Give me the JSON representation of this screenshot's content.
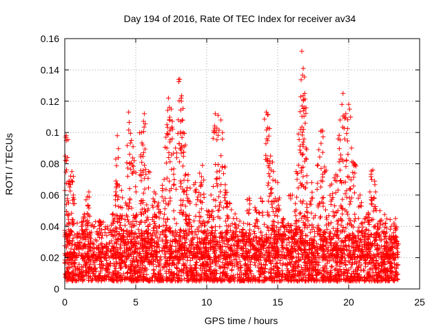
{
  "chart_data": {
    "type": "scatter",
    "title": "Day 194 of 2016, Rate Of TEC Index for receiver av34",
    "xlabel": "GPS time / hours",
    "ylabel": "ROTI / TECUs",
    "xlim": [
      0,
      25
    ],
    "ylim": [
      0,
      0.16
    ],
    "xticks": [
      0,
      5,
      10,
      15,
      20,
      25
    ],
    "xtick_labels": [
      "0",
      "5",
      "10",
      "15",
      "20",
      "25"
    ],
    "yticks": [
      0,
      0.02,
      0.04,
      0.06,
      0.08,
      0.1,
      0.12,
      0.14,
      0.16
    ],
    "ytick_labels": [
      "0",
      "0.02",
      "0.04",
      "0.06",
      "0.08",
      "0.1",
      "0.12",
      "0.14",
      "0.16"
    ],
    "grid": true,
    "marker": "+",
    "color": "#ff0000",
    "series": [
      {
        "name": "ROTI",
        "x_range": [
          0,
          23.5
        ],
        "baseline_range": [
          0.005,
          0.03
        ],
        "note": "dense scatter; points below are approximate envelope peaks",
        "peaks": [
          {
            "x": 0.1,
            "y": 0.098
          },
          {
            "x": 0.2,
            "y": 0.084
          },
          {
            "x": 0.3,
            "y": 0.069
          },
          {
            "x": 0.5,
            "y": 0.075
          },
          {
            "x": 0.6,
            "y": 0.06
          },
          {
            "x": 1.3,
            "y": 0.045
          },
          {
            "x": 1.5,
            "y": 0.057
          },
          {
            "x": 1.7,
            "y": 0.062
          },
          {
            "x": 2.5,
            "y": 0.041
          },
          {
            "x": 3.4,
            "y": 0.048
          },
          {
            "x": 3.6,
            "y": 0.069
          },
          {
            "x": 3.7,
            "y": 0.098
          },
          {
            "x": 4.0,
            "y": 0.063
          },
          {
            "x": 4.3,
            "y": 0.055
          },
          {
            "x": 4.5,
            "y": 0.113
          },
          {
            "x": 4.7,
            "y": 0.095
          },
          {
            "x": 4.9,
            "y": 0.082
          },
          {
            "x": 5.4,
            "y": 0.1
          },
          {
            "x": 5.5,
            "y": 0.092
          },
          {
            "x": 5.6,
            "y": 0.112
          },
          {
            "x": 5.9,
            "y": 0.075
          },
          {
            "x": 6.3,
            "y": 0.062
          },
          {
            "x": 6.6,
            "y": 0.055
          },
          {
            "x": 7.0,
            "y": 0.07
          },
          {
            "x": 7.2,
            "y": 0.105
          },
          {
            "x": 7.3,
            "y": 0.122
          },
          {
            "x": 7.5,
            "y": 0.115
          },
          {
            "x": 7.8,
            "y": 0.09
          },
          {
            "x": 8.1,
            "y": 0.134
          },
          {
            "x": 8.2,
            "y": 0.122
          },
          {
            "x": 8.3,
            "y": 0.108
          },
          {
            "x": 8.5,
            "y": 0.092
          },
          {
            "x": 8.7,
            "y": 0.073
          },
          {
            "x": 9.2,
            "y": 0.068
          },
          {
            "x": 9.5,
            "y": 0.074
          },
          {
            "x": 9.7,
            "y": 0.079
          },
          {
            "x": 10.0,
            "y": 0.05
          },
          {
            "x": 10.3,
            "y": 0.06
          },
          {
            "x": 10.6,
            "y": 0.112
          },
          {
            "x": 10.8,
            "y": 0.111
          },
          {
            "x": 11.0,
            "y": 0.108
          },
          {
            "x": 11.3,
            "y": 0.078
          },
          {
            "x": 11.6,
            "y": 0.055
          },
          {
            "x": 12.0,
            "y": 0.048
          },
          {
            "x": 12.6,
            "y": 0.042
          },
          {
            "x": 13.0,
            "y": 0.058
          },
          {
            "x": 13.4,
            "y": 0.052
          },
          {
            "x": 13.8,
            "y": 0.058
          },
          {
            "x": 14.2,
            "y": 0.113
          },
          {
            "x": 14.3,
            "y": 0.103
          },
          {
            "x": 14.5,
            "y": 0.085
          },
          {
            "x": 14.7,
            "y": 0.075
          },
          {
            "x": 15.0,
            "y": 0.068
          },
          {
            "x": 15.4,
            "y": 0.045
          },
          {
            "x": 15.9,
            "y": 0.06
          },
          {
            "x": 16.3,
            "y": 0.075
          },
          {
            "x": 16.6,
            "y": 0.102
          },
          {
            "x": 16.7,
            "y": 0.152
          },
          {
            "x": 16.8,
            "y": 0.141
          },
          {
            "x": 16.9,
            "y": 0.125
          },
          {
            "x": 17.0,
            "y": 0.09
          },
          {
            "x": 17.4,
            "y": 0.068
          },
          {
            "x": 17.9,
            "y": 0.089
          },
          {
            "x": 18.1,
            "y": 0.101
          },
          {
            "x": 18.3,
            "y": 0.078
          },
          {
            "x": 18.8,
            "y": 0.067
          },
          {
            "x": 19.1,
            "y": 0.073
          },
          {
            "x": 19.4,
            "y": 0.108
          },
          {
            "x": 19.6,
            "y": 0.125
          },
          {
            "x": 19.8,
            "y": 0.112
          },
          {
            "x": 20.0,
            "y": 0.118
          },
          {
            "x": 20.2,
            "y": 0.09
          },
          {
            "x": 20.4,
            "y": 0.08
          },
          {
            "x": 20.8,
            "y": 0.06
          },
          {
            "x": 21.2,
            "y": 0.045
          },
          {
            "x": 21.5,
            "y": 0.062
          },
          {
            "x": 21.7,
            "y": 0.076
          },
          {
            "x": 21.9,
            "y": 0.062
          },
          {
            "x": 22.2,
            "y": 0.05
          },
          {
            "x": 22.6,
            "y": 0.042
          },
          {
            "x": 23.0,
            "y": 0.04
          },
          {
            "x": 23.3,
            "y": 0.045
          }
        ]
      }
    ]
  }
}
